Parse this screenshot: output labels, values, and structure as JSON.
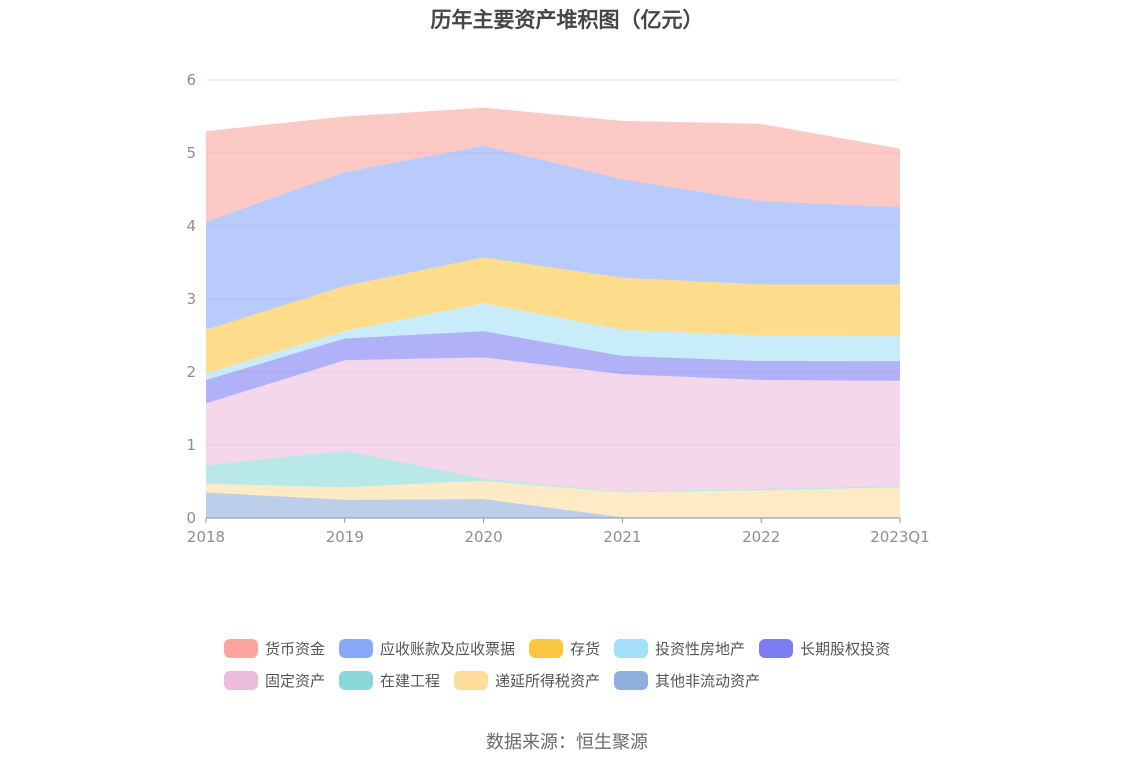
{
  "chart_data": {
    "type": "area",
    "stacked": true,
    "title": "历年主要资产堆积图（亿元）",
    "categories": [
      "2018",
      "2019",
      "2020",
      "2021",
      "2022",
      "2023Q1"
    ],
    "ylim": [
      0,
      6
    ],
    "yticks": [
      "0",
      "1",
      "2",
      "3",
      "4",
      "5",
      "6"
    ],
    "grid": "horizontal",
    "legend_position": "bottom",
    "series": [
      {
        "name": "其他非流动资产",
        "color": "#8fafdc",
        "values": [
          0.35,
          0.25,
          0.26,
          0.01,
          0.01,
          0.01
        ]
      },
      {
        "name": "递延所得税资产",
        "color": "#fedc9c",
        "values": [
          0.12,
          0.17,
          0.25,
          0.34,
          0.37,
          0.41
        ]
      },
      {
        "name": "在建工程",
        "color": "#8ad8d8",
        "values": [
          0.25,
          0.5,
          0.03,
          0.01,
          0.02,
          0.02
        ]
      },
      {
        "name": "固定资产",
        "color": "#ecbcdc",
        "values": [
          0.85,
          1.24,
          1.66,
          1.61,
          1.49,
          1.44
        ]
      },
      {
        "name": "长期股权投资",
        "color": "#7d7df3",
        "values": [
          0.32,
          0.3,
          0.36,
          0.25,
          0.26,
          0.27
        ]
      },
      {
        "name": "投资性房地产",
        "color": "#a5dff9",
        "values": [
          0.09,
          0.1,
          0.38,
          0.36,
          0.35,
          0.34
        ]
      },
      {
        "name": "存货",
        "color": "#fcc740",
        "values": [
          0.6,
          0.62,
          0.63,
          0.71,
          0.7,
          0.71
        ]
      },
      {
        "name": "应收账款及应收票据",
        "color": "#88a8f9",
        "values": [
          1.48,
          1.56,
          1.53,
          1.35,
          1.14,
          1.06
        ]
      },
      {
        "name": "货币资金",
        "color": "#fba59e",
        "values": [
          1.24,
          0.76,
          0.52,
          0.8,
          1.06,
          0.8
        ]
      }
    ]
  },
  "legend_order": [
    [
      "货币资金",
      "应收账款及应收票据",
      "存货",
      "投资性房地产",
      "长期股权投资"
    ],
    [
      "固定资产",
      "在建工程",
      "递延所得税资产",
      "其他非流动资产"
    ]
  ],
  "source_note": "数据来源：恒生聚源"
}
